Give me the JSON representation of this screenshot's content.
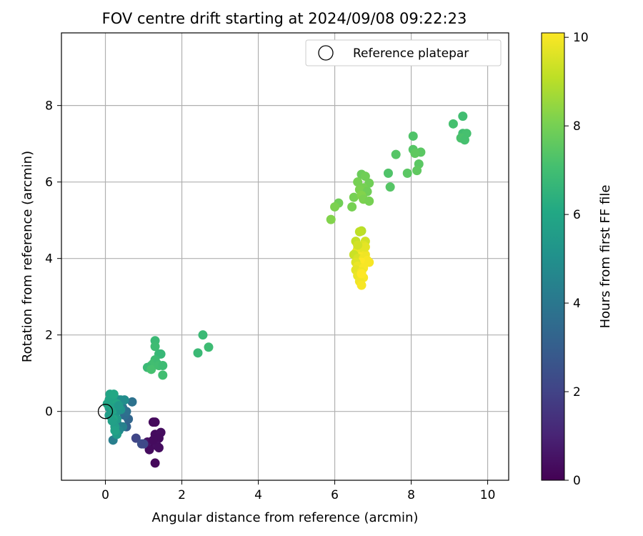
{
  "chart_data": {
    "type": "scatter",
    "title": "FOV centre drift starting at 2024/09/08 09:22:23",
    "xlabel": "Angular distance from reference (arcmin)",
    "ylabel": "Rotation from reference (arcmin)",
    "xlim": [
      -1.15,
      10.55
    ],
    "ylim": [
      -1.8,
      9.9
    ],
    "x_ticks": [
      0,
      2,
      4,
      6,
      8,
      10
    ],
    "y_ticks": [
      0,
      2,
      4,
      6,
      8
    ],
    "grid": true,
    "legend": {
      "position": "top-right",
      "entries": [
        {
          "label": "Reference platepar",
          "marker": "open-circle"
        }
      ]
    },
    "reference_point": {
      "x": 0,
      "y": 0
    },
    "colorbar": {
      "label": "Hours from first FF file",
      "min": 0,
      "max": 10.1,
      "ticks": [
        0,
        2,
        4,
        6,
        8,
        10
      ],
      "colormap": "viridis"
    },
    "points": [
      [
        1.25,
        -0.28,
        0.2
      ],
      [
        1.3,
        -0.28,
        0.25
      ],
      [
        1.3,
        -0.6,
        0.3
      ],
      [
        1.45,
        -0.55,
        0.35
      ],
      [
        1.4,
        -0.7,
        0.3
      ],
      [
        1.2,
        -0.85,
        0.2
      ],
      [
        1.35,
        -0.9,
        0.4
      ],
      [
        1.15,
        -1.0,
        0.3
      ],
      [
        1.3,
        -1.35,
        0.2
      ],
      [
        1.1,
        -0.8,
        0.5
      ],
      [
        1.25,
        -0.75,
        0.3
      ],
      [
        1.4,
        -0.95,
        0.35
      ],
      [
        0.8,
        -0.7,
        2.1
      ],
      [
        0.95,
        -0.85,
        2.4
      ],
      [
        1.0,
        -0.85,
        2.2
      ],
      [
        0.55,
        -0.4,
        3.1
      ],
      [
        0.6,
        -0.2,
        3.3
      ],
      [
        0.7,
        0.25,
        3.8
      ],
      [
        0.5,
        -0.1,
        3.6
      ],
      [
        0.45,
        0.1,
        3.9
      ],
      [
        0.4,
        0.25,
        4.0
      ],
      [
        0.55,
        0.0,
        3.7
      ],
      [
        0.3,
        -0.3,
        4.2
      ],
      [
        0.2,
        -0.75,
        4.3
      ],
      [
        0.35,
        0.3,
        4.5
      ],
      [
        0.45,
        -0.4,
        4.4
      ],
      [
        0.25,
        0.15,
        4.8
      ],
      [
        0.4,
        0.3,
        5.0
      ],
      [
        0.5,
        0.3,
        4.9
      ],
      [
        0.35,
        -0.5,
        4.7
      ],
      [
        0.15,
        0.2,
        5.0
      ],
      [
        0.3,
        0.0,
        5.2
      ],
      [
        0.2,
        -0.05,
        5.3
      ],
      [
        0.1,
        0.1,
        5.4
      ],
      [
        0.3,
        -0.2,
        5.5
      ],
      [
        0.25,
        -0.4,
        5.6
      ],
      [
        0.3,
        -0.6,
        5.5
      ],
      [
        0.15,
        0.35,
        5.7
      ],
      [
        0.2,
        0.4,
        5.8
      ],
      [
        0.1,
        0.3,
        5.9
      ],
      [
        0.05,
        0.2,
        5.9
      ],
      [
        0.2,
        -0.2,
        6.0
      ],
      [
        0.25,
        -0.5,
        5.8
      ],
      [
        0.2,
        0.05,
        6.0
      ],
      [
        0.1,
        -0.1,
        5.6
      ],
      [
        0.3,
        0.2,
        6.0
      ],
      [
        0.25,
        0.1,
        5.8
      ],
      [
        0.4,
        0.05,
        5.2
      ],
      [
        0.35,
        0.15,
        5.4
      ],
      [
        0.18,
        -0.25,
        5.7
      ],
      [
        0.12,
        0.45,
        5.9
      ],
      [
        0.22,
        0.45,
        6.0
      ],
      [
        1.3,
        1.85,
        6.8
      ],
      [
        1.3,
        1.7,
        6.9
      ],
      [
        1.4,
        1.5,
        6.8
      ],
      [
        1.45,
        1.5,
        6.7
      ],
      [
        1.3,
        1.35,
        6.9
      ],
      [
        1.25,
        1.25,
        7.0
      ],
      [
        1.35,
        1.25,
        6.9
      ],
      [
        1.2,
        1.2,
        7.0
      ],
      [
        1.1,
        1.15,
        6.8
      ],
      [
        1.2,
        1.1,
        7.1
      ],
      [
        1.4,
        1.2,
        7.0
      ],
      [
        1.5,
        1.2,
        6.9
      ],
      [
        1.5,
        0.95,
        7.0
      ],
      [
        2.55,
        2.0,
        6.8
      ],
      [
        2.7,
        1.68,
        6.9
      ],
      [
        2.42,
        1.53,
        6.8
      ],
      [
        9.35,
        7.72,
        7.0
      ],
      [
        9.1,
        7.52,
        7.1
      ],
      [
        9.35,
        7.27,
        7.0
      ],
      [
        9.45,
        7.27,
        7.1
      ],
      [
        9.3,
        7.15,
        7.2
      ],
      [
        9.4,
        7.1,
        7.1
      ],
      [
        8.05,
        7.2,
        7.3
      ],
      [
        8.05,
        6.85,
        7.4
      ],
      [
        8.25,
        6.78,
        7.5
      ],
      [
        8.1,
        6.75,
        7.6
      ],
      [
        7.6,
        6.72,
        7.4
      ],
      [
        8.2,
        6.47,
        7.5
      ],
      [
        8.15,
        6.3,
        7.6
      ],
      [
        7.4,
        6.23,
        7.3
      ],
      [
        7.9,
        6.23,
        7.5
      ],
      [
        7.45,
        5.87,
        7.4
      ],
      [
        6.7,
        6.2,
        7.8
      ],
      [
        6.8,
        6.15,
        7.9
      ],
      [
        6.6,
        6.0,
        8.0
      ],
      [
        6.9,
        5.97,
        7.9
      ],
      [
        6.75,
        5.85,
        8.0
      ],
      [
        6.65,
        5.8,
        8.1
      ],
      [
        6.85,
        5.75,
        7.9
      ],
      [
        6.5,
        5.6,
        8.0
      ],
      [
        6.7,
        5.65,
        8.2
      ],
      [
        6.75,
        5.55,
        8.1
      ],
      [
        6.9,
        5.5,
        8.0
      ],
      [
        6.1,
        5.45,
        7.9
      ],
      [
        6.0,
        5.35,
        8.1
      ],
      [
        6.45,
        5.35,
        8.0
      ],
      [
        5.9,
        5.02,
        8.2
      ],
      [
        6.7,
        4.72,
        9.0
      ],
      [
        6.65,
        4.7,
        9.1
      ],
      [
        6.55,
        4.45,
        9.2
      ],
      [
        6.8,
        4.45,
        9.4
      ],
      [
        6.6,
        4.25,
        9.5
      ],
      [
        6.75,
        4.35,
        9.6
      ],
      [
        6.7,
        4.2,
        9.7
      ],
      [
        6.55,
        4.15,
        9.8
      ],
      [
        6.8,
        4.1,
        9.9
      ],
      [
        6.65,
        4.05,
        10.0
      ],
      [
        6.5,
        4.1,
        9.3
      ],
      [
        6.6,
        4.0,
        9.5
      ],
      [
        6.75,
        4.0,
        9.9
      ],
      [
        6.85,
        3.95,
        10.0
      ],
      [
        6.7,
        3.9,
        10.1
      ],
      [
        6.55,
        3.9,
        9.6
      ],
      [
        6.9,
        3.9,
        10.0
      ],
      [
        6.6,
        3.8,
        9.8
      ],
      [
        6.75,
        3.75,
        10.0
      ],
      [
        6.55,
        3.7,
        9.7
      ],
      [
        6.7,
        3.65,
        9.9
      ],
      [
        6.6,
        3.55,
        9.8
      ],
      [
        6.75,
        3.5,
        10.0
      ],
      [
        6.65,
        3.4,
        9.9
      ],
      [
        6.7,
        3.3,
        10.0
      ],
      [
        6.8,
        4.3,
        9.7
      ],
      [
        6.6,
        4.35,
        9.4
      ],
      [
        6.7,
        3.6,
        10.1
      ]
    ]
  }
}
